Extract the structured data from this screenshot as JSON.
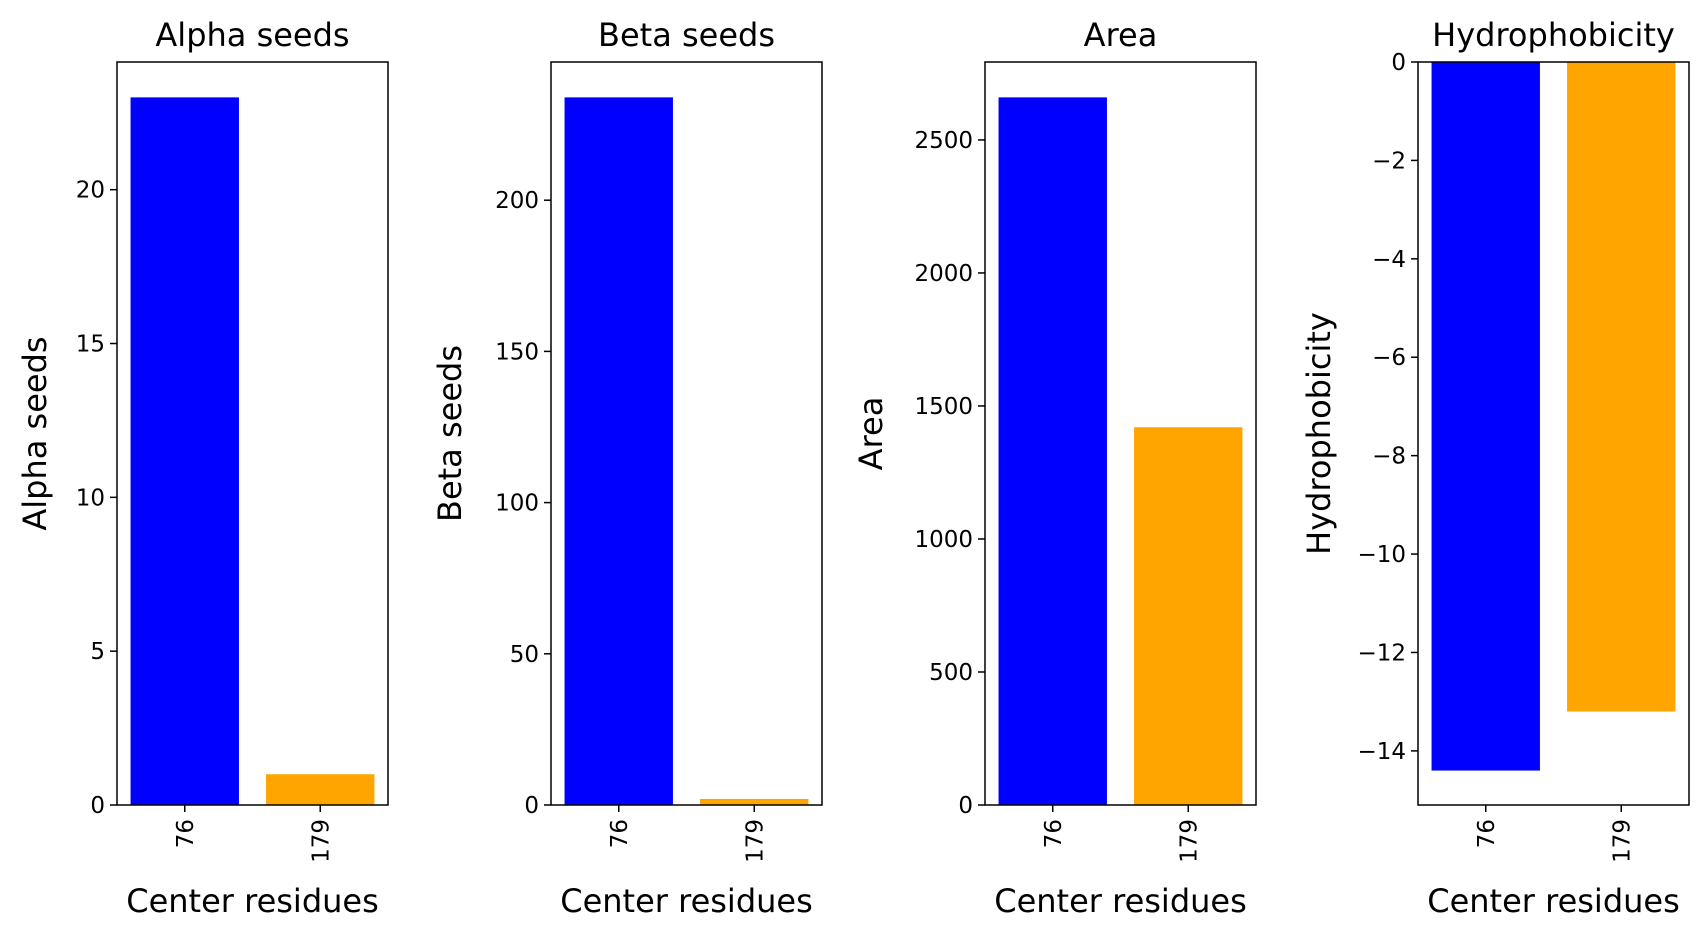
{
  "figure": {
    "background": "#ffffff"
  },
  "chart_data": [
    {
      "type": "bar",
      "title": "Alpha seeds",
      "xlabel": "Center residues",
      "ylabel": "Alpha seeds",
      "categories": [
        "76",
        "179"
      ],
      "values": [
        23,
        1
      ],
      "colors": [
        "#0000ff",
        "#ffa500"
      ],
      "ylim": [
        0,
        24.15
      ],
      "yticks": [
        0,
        5,
        10,
        15,
        20
      ],
      "grid": false
    },
    {
      "type": "bar",
      "title": "Beta seeds",
      "xlabel": "Center residues",
      "ylabel": "Beta seeds",
      "categories": [
        "76",
        "179"
      ],
      "values": [
        234,
        2
      ],
      "colors": [
        "#0000ff",
        "#ffa500"
      ],
      "ylim": [
        0,
        245.7
      ],
      "yticks": [
        0,
        50,
        100,
        150,
        200
      ],
      "grid": false
    },
    {
      "type": "bar",
      "title": "Area",
      "xlabel": "Center residues",
      "ylabel": "Area",
      "categories": [
        "76",
        "179"
      ],
      "values": [
        2660,
        1420
      ],
      "colors": [
        "#0000ff",
        "#ffa500"
      ],
      "ylim": [
        0,
        2793
      ],
      "yticks": [
        0,
        500,
        1000,
        1500,
        2000,
        2500
      ],
      "grid": false
    },
    {
      "type": "bar",
      "title": "Hydrophobicity",
      "xlabel": "Center residues",
      "ylabel": "Hydrophobicity",
      "categories": [
        "76",
        "179"
      ],
      "values": [
        -14.4,
        -13.2
      ],
      "colors": [
        "#0000ff",
        "#ffa500"
      ],
      "ylim": [
        -15.1,
        0
      ],
      "yticks": [
        0,
        -2,
        -4,
        -6,
        -8,
        -10,
        -12,
        -14
      ],
      "ytick_labels": [
        "0",
        "−2",
        "−4",
        "−6",
        "−8",
        "−10",
        "−12",
        "−14"
      ],
      "grid": false
    }
  ]
}
